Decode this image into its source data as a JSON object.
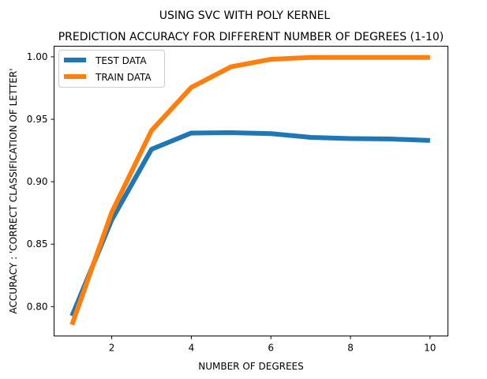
{
  "chart_data": {
    "type": "line",
    "suptitle": "USING SVC WITH POLY KERNEL",
    "title": "PREDICTION ACCURACY FOR DIFFERENT NUMBER OF DEGREES (1-10)",
    "xlabel": "NUMBER OF DEGREES",
    "ylabel": "ACCURACY : 'CORRECT CLASSIFICATION OF LETTER'",
    "xlim": [
      0.55,
      10.45
    ],
    "ylim": [
      0.7765,
      1.0085
    ],
    "x_ticks": [
      2,
      4,
      6,
      8,
      10
    ],
    "y_ticks": [
      0.8,
      0.85,
      0.9,
      0.95,
      1.0
    ],
    "x_tick_labels": [
      "2",
      "4",
      "6",
      "8",
      "10"
    ],
    "y_tick_labels": [
      "0.80",
      "0.85",
      "0.90",
      "0.95",
      "1.00"
    ],
    "grid": false,
    "legend_position": "top-left",
    "x": [
      1,
      2,
      3,
      4,
      5,
      6,
      7,
      8,
      9,
      10
    ],
    "series": [
      {
        "name": "TEST DATA",
        "color": "#1f77b4",
        "values": [
          0.7925,
          0.8695,
          0.926,
          0.939,
          0.9393,
          0.9385,
          0.9355,
          0.9345,
          0.9342,
          0.933
        ]
      },
      {
        "name": "TRAIN DATA",
        "color": "#ff7f0e",
        "values": [
          0.7855,
          0.8755,
          0.941,
          0.9755,
          0.992,
          0.998,
          0.9995,
          0.9995,
          0.9995,
          0.9995
        ]
      }
    ]
  }
}
